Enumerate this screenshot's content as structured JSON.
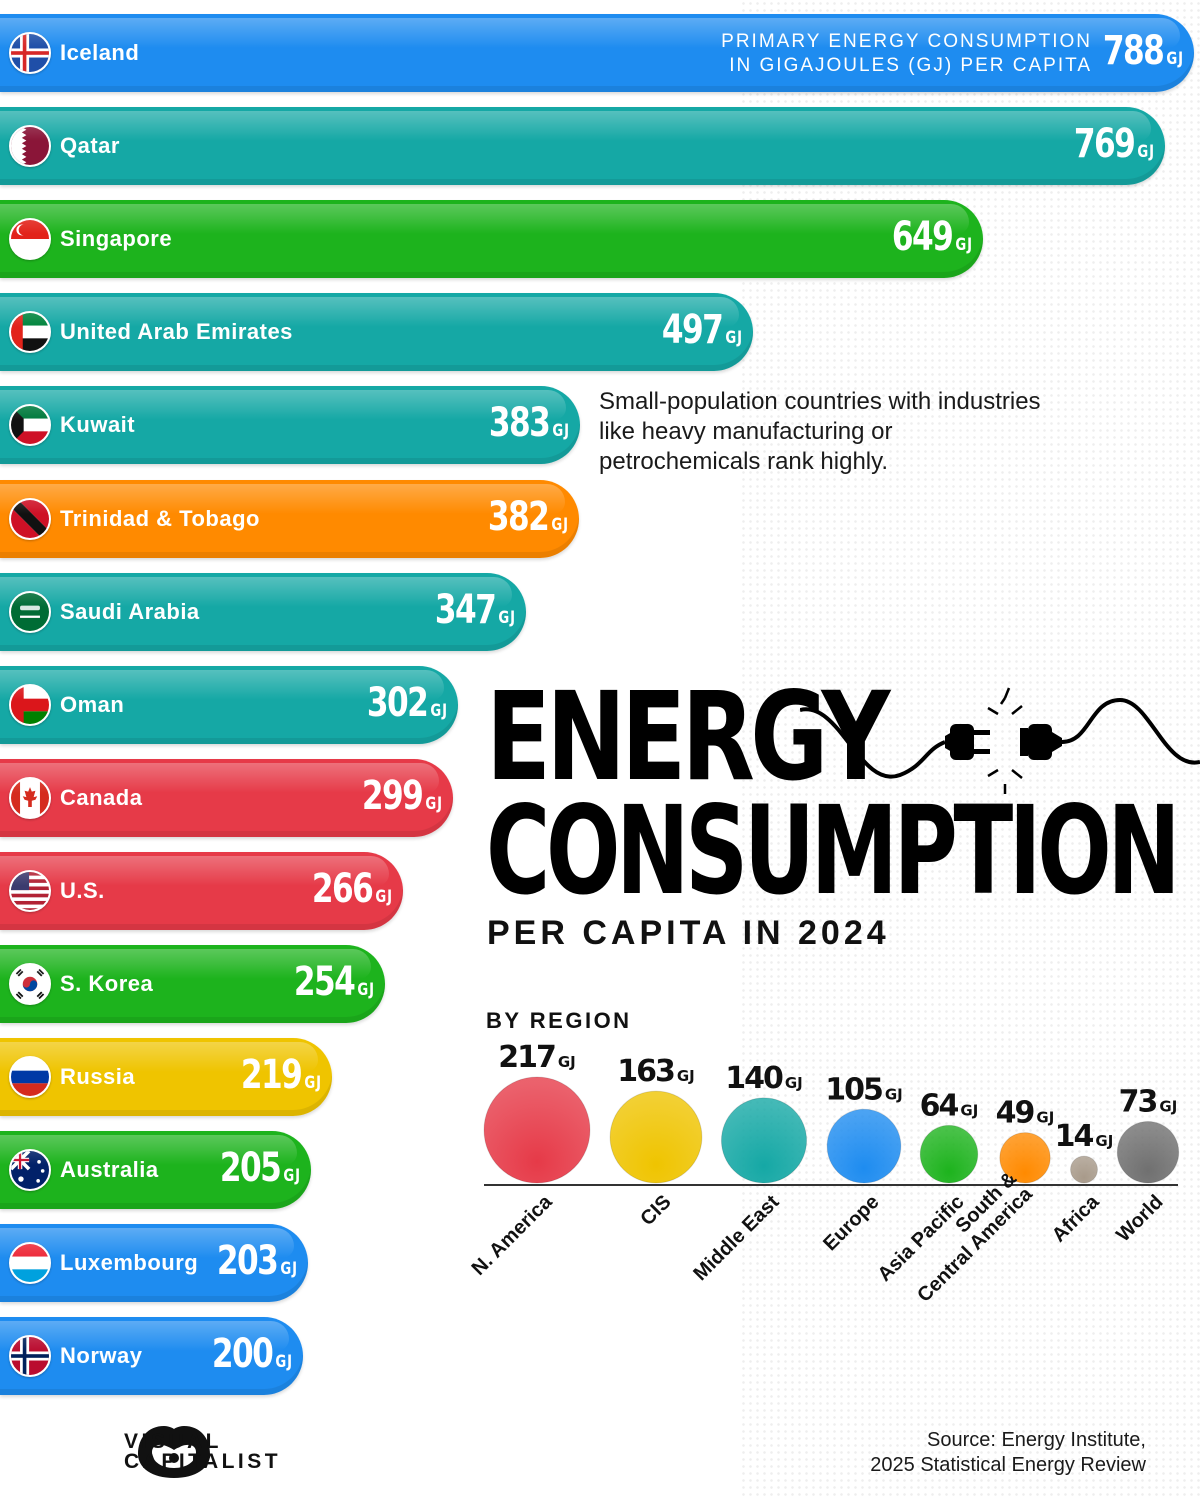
{
  "title_line1": "ENERGY",
  "title_line2": "CONSUMPTION",
  "subtitle": "PER CAPITA IN 2024",
  "unit_note_line1": "PRIMARY ENERGY CONSUMPTION",
  "unit_note_line2": "IN GIGAJOULES (GJ) PER CAPITA",
  "annotation": "Small-population countries with industries like heavy manufacturing or petrochemicals rank highly.",
  "region_section_label": "BY REGION",
  "source_line1": "Source: Energy Institute,",
  "source_line2": "2025 Statistical Energy Review",
  "brand_line1": "VISUAL",
  "brand_line2": "CAPITALIST",
  "chart_data": [
    {
      "type": "bar",
      "orientation": "horizontal",
      "unit": "GJ",
      "categories": [
        "Iceland",
        "Qatar",
        "Singapore",
        "United Arab Emirates",
        "Kuwait",
        "Trinidad & Tobago",
        "Saudi Arabia",
        "Oman",
        "Canada",
        "U.S.",
        "S. Korea",
        "Russia",
        "Australia",
        "Luxembourg",
        "Norway"
      ],
      "values": [
        788,
        769,
        649,
        497,
        383,
        382,
        347,
        302,
        299,
        266,
        254,
        219,
        205,
        203,
        200
      ],
      "bar_colors": [
        "#1e8cf0",
        "#15a8a5",
        "#1db31d",
        "#15a8a5",
        "#15a8a5",
        "#ff8a00",
        "#15a8a5",
        "#15a8a5",
        "#e63a48",
        "#e63a48",
        "#1db31d",
        "#efc400",
        "#1db31d",
        "#1e8cf0",
        "#1e8cf0"
      ],
      "flags": [
        "iceland-flag-icon",
        "qatar-flag-icon",
        "singapore-flag-icon",
        "uae-flag-icon",
        "kuwait-flag-icon",
        "trinidad-flag-icon",
        "saudi-flag-icon",
        "oman-flag-icon",
        "canada-flag-icon",
        "us-flag-icon",
        "korea-flag-icon",
        "russia-flag-icon",
        "australia-flag-icon",
        "luxembourg-flag-icon",
        "norway-flag-icon"
      ]
    },
    {
      "type": "bubble",
      "unit": "GJ",
      "categories": [
        "N. America",
        "CIS",
        "Middle East",
        "Europe",
        "Asia Pacific",
        "South & Central America",
        "Africa",
        "World"
      ],
      "category_lines": [
        [
          "N. America"
        ],
        [
          "CIS"
        ],
        [
          "Middle East"
        ],
        [
          "Europe"
        ],
        [
          "Asia Pacific"
        ],
        [
          "South &",
          "Central America"
        ],
        [
          "Africa"
        ],
        [
          "World"
        ]
      ],
      "values": [
        217,
        163,
        140,
        105,
        64,
        49,
        14,
        73
      ],
      "colors": [
        "#e63a48",
        "#efc400",
        "#15a8a5",
        "#1e8cf0",
        "#1db31d",
        "#ff8a00",
        "#a89a8a",
        "#707070"
      ]
    }
  ]
}
